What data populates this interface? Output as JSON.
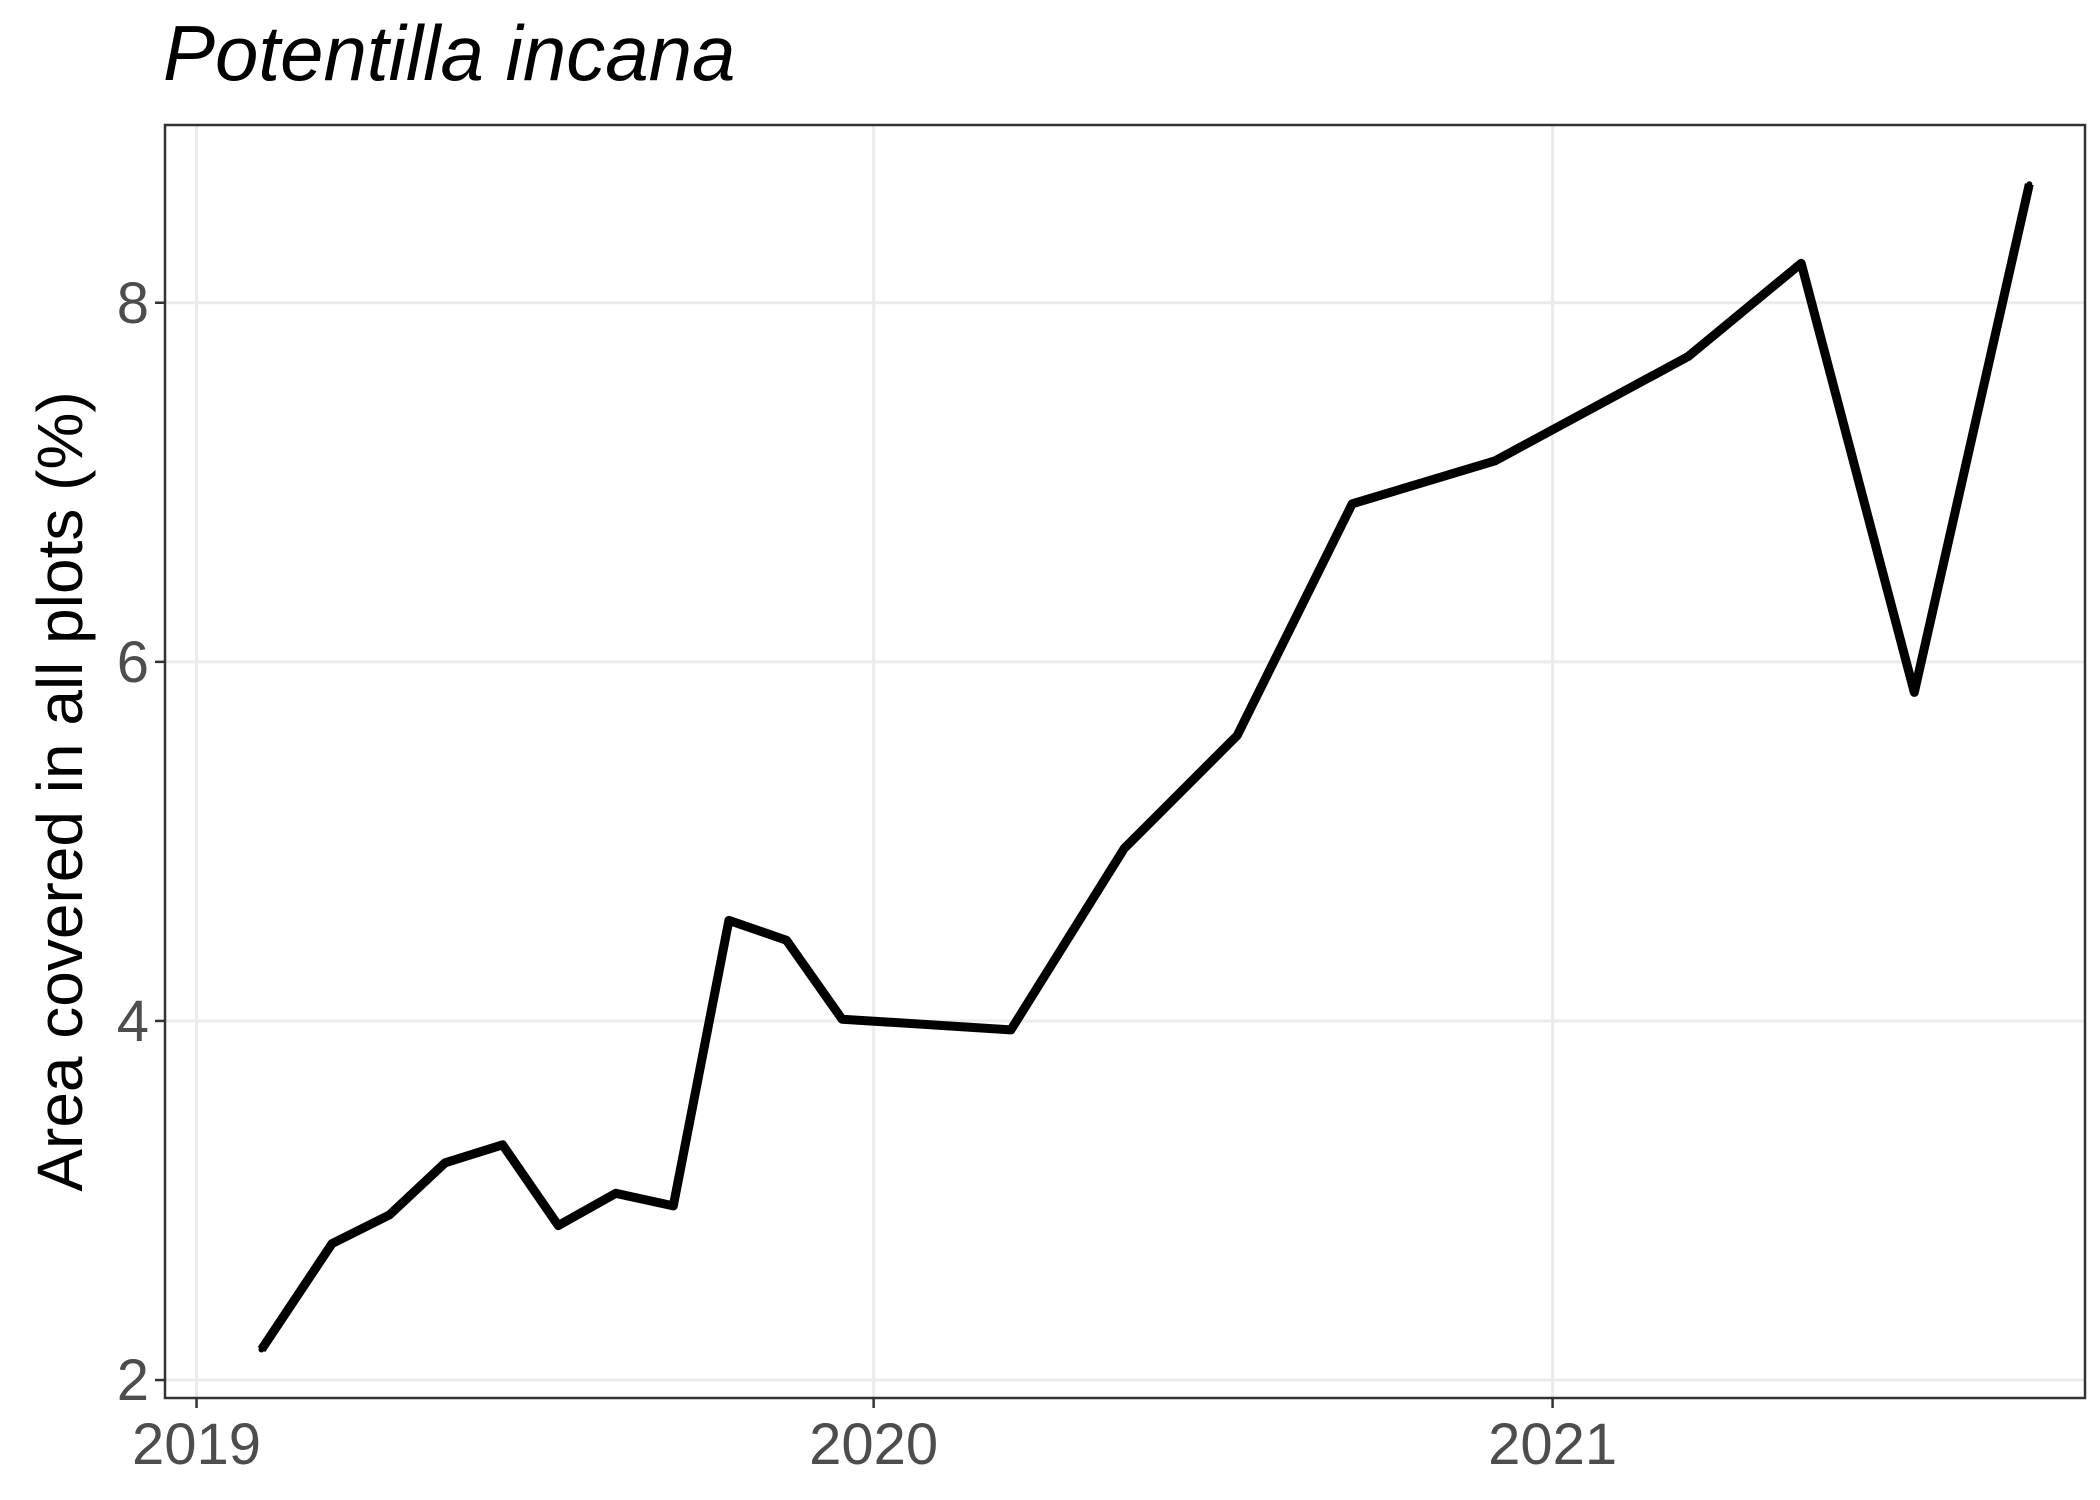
{
  "chart_data": {
    "type": "line",
    "title": "Potentilla incana",
    "xlabel": "",
    "ylabel": "Area covered in all plots (%)",
    "x_ticks": [
      "2019",
      "2020",
      "2021"
    ],
    "y_ticks": [
      2,
      4,
      6,
      8
    ],
    "xlim": [
      "2018-12-15",
      "2021-10-15"
    ],
    "ylim": [
      1.9,
      8.99
    ],
    "grid": true,
    "legend": "none",
    "line_color": "#000000",
    "series": [
      {
        "x": [
          "2019-02-05",
          "2019-03-15",
          "2019-04-15",
          "2019-05-15",
          "2019-06-15",
          "2019-07-15",
          "2019-08-15",
          "2019-09-15",
          "2019-10-15",
          "2019-11-15",
          "2019-12-15",
          "2020-03-15",
          "2020-05-15",
          "2020-07-15",
          "2020-09-15",
          "2020-12-01",
          "2021-03-15",
          "2021-05-15",
          "2021-07-15",
          "2021-09-15"
        ],
        "values": [
          2.17,
          2.76,
          2.92,
          3.21,
          3.31,
          2.86,
          3.04,
          2.97,
          4.56,
          4.45,
          4.01,
          3.95,
          4.96,
          5.59,
          6.88,
          7.12,
          7.7,
          8.22,
          5.83,
          8.66
        ]
      }
    ]
  }
}
